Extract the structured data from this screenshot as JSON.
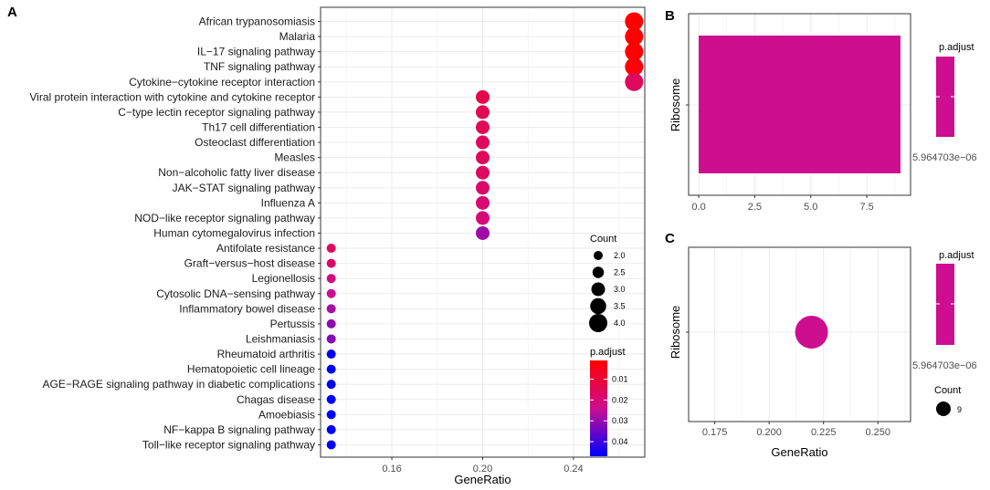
{
  "chart_data": [
    {
      "panel": "A",
      "type": "scatter",
      "xlabel": "GeneRatio",
      "ylabel": "",
      "xlim": [
        0.1286,
        0.2714
      ],
      "xticks": [
        "0.16",
        "0.20",
        "0.24"
      ],
      "categories": [
        "African trypanosomiasis",
        "Malaria",
        "IL−17 signaling pathway",
        "TNF signaling pathway",
        "Cytokine−cytokine receptor interaction",
        "Viral protein interaction with cytokine and cytokine receptor",
        "C−type lectin receptor signaling pathway",
        "Th17 cell differentiation",
        "Osteoclast differentiation",
        "Measles",
        "Non−alcoholic fatty liver disease",
        "JAK−STAT signaling pathway",
        "Influenza A",
        "NOD−like receptor signaling pathway",
        "Human cytomegalovirus infection",
        "Antifolate resistance",
        "Graft−versus−host disease",
        "Legionellosis",
        "Cytosolic DNA−sensing pathway",
        "Inflammatory bowel disease",
        "Pertussis",
        "Leishmaniasis",
        "Rheumatoid arthritis",
        "Hematopoietic cell lineage",
        "AGE−RAGE signaling pathway in diabetic complications",
        "Chagas disease",
        "Amoebiasis",
        "NF−kappa B signaling pathway",
        "Toll−like receptor signaling pathway"
      ],
      "gene_ratio": [
        0.2667,
        0.2667,
        0.2667,
        0.2667,
        0.2667,
        0.2,
        0.2,
        0.2,
        0.2,
        0.2,
        0.2,
        0.2,
        0.2,
        0.2,
        0.2,
        0.1333,
        0.1333,
        0.1333,
        0.1333,
        0.1333,
        0.1333,
        0.1333,
        0.1333,
        0.1333,
        0.1333,
        0.1333,
        0.1333,
        0.1333,
        0.1333
      ],
      "count": [
        4,
        4,
        4,
        4,
        4,
        3,
        3,
        3,
        3,
        3,
        3,
        3,
        3,
        3,
        3,
        2,
        2,
        2,
        2,
        2,
        2,
        2,
        2,
        2,
        2,
        2,
        2,
        2,
        2
      ],
      "p_adjust": [
        0.001,
        0.001,
        0.001,
        0.002,
        0.016,
        0.013,
        0.014,
        0.015,
        0.016,
        0.016,
        0.017,
        0.018,
        0.019,
        0.02,
        0.029,
        0.016,
        0.018,
        0.021,
        0.024,
        0.028,
        0.031,
        0.032,
        0.047,
        0.047,
        0.047,
        0.047,
        0.047,
        0.047,
        0.047
      ],
      "legend_count": {
        "title": "Count",
        "values": [
          "2.0",
          "2.5",
          "3.0",
          "3.5",
          "4.0"
        ]
      },
      "legend_padjust": {
        "title": "p.adjust",
        "ticks": [
          "0.01",
          "0.02",
          "0.03",
          "0.04"
        ],
        "range": [
          0.001,
          0.047
        ],
        "color_low": "#FF0000",
        "color_high": "#0000FF"
      }
    },
    {
      "panel": "B",
      "type": "bar",
      "categories": [
        "Ribosome"
      ],
      "values": [
        9
      ],
      "p_adjust": [
        "5.964703e−06"
      ],
      "xlim": [
        -0.45,
        9.45
      ],
      "xticks": [
        "0.0",
        "2.5",
        "5.0",
        "7.5"
      ],
      "ylabel": "Ribosome",
      "legend_padjust": {
        "title": "p.adjust",
        "label": "5.964703e−06"
      },
      "bar_color": "#CC0E8F"
    },
    {
      "panel": "C",
      "type": "scatter",
      "categories": [
        "Ribosome"
      ],
      "gene_ratio": [
        0.2195
      ],
      "count": [
        9
      ],
      "xlim": [
        0.163,
        0.265
      ],
      "xticks": [
        "0.175",
        "0.200",
        "0.225",
        "0.250"
      ],
      "xlabel": "GeneRatio",
      "ylabel": "Ribosome",
      "legend_padjust": {
        "title": "p.adjust",
        "label": "5.964703e−06"
      },
      "legend_count": {
        "title": "Count",
        "values": [
          "9"
        ]
      },
      "point_color": "#CC0E8F"
    }
  ]
}
